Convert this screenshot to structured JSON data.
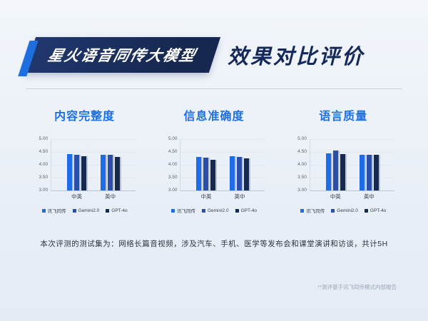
{
  "header": {
    "banner_label": "星火语音同传大模型",
    "title": "效果对比评价"
  },
  "chart_data": [
    {
      "type": "bar",
      "title": "内容完整度",
      "categories": [
        "中英",
        "英中"
      ],
      "series": [
        {
          "name": "讯飞同传",
          "color": "#1f6ce8",
          "values": [
            4.42,
            4.38
          ]
        },
        {
          "name": "Gemini2.0",
          "color": "#2b4fa8",
          "values": [
            4.38,
            4.38
          ]
        },
        {
          "name": "GPT-4o",
          "color": "#16294f",
          "values": [
            4.32,
            4.3
          ]
        }
      ],
      "ylim": [
        3,
        5
      ],
      "yticks": [
        "5.00",
        "4.50",
        "4.00",
        "3.50",
        "3.00"
      ],
      "legend_position": "bottom",
      "grid": true
    },
    {
      "type": "bar",
      "title": "信息准确度",
      "categories": [
        "中英",
        "英中"
      ],
      "series": [
        {
          "name": "讯飞同传",
          "color": "#1f6ce8",
          "values": [
            4.3,
            4.32
          ]
        },
        {
          "name": "Gemini2.0",
          "color": "#2b4fa8",
          "values": [
            4.28,
            4.3
          ]
        },
        {
          "name": "GPT-4o",
          "color": "#16294f",
          "values": [
            4.2,
            4.25
          ]
        }
      ],
      "ylim": [
        3,
        5
      ],
      "yticks": [
        "5.00",
        "4.50",
        "4.00",
        "3.50",
        "3.00"
      ],
      "legend_position": "bottom",
      "grid": true
    },
    {
      "type": "bar",
      "title": "语言质量",
      "categories": [
        "中英",
        "英中"
      ],
      "series": [
        {
          "name": "讯飞同传",
          "color": "#1f6ce8",
          "values": [
            4.45,
            4.38
          ]
        },
        {
          "name": "Gemini2.0",
          "color": "#2b4fa8",
          "values": [
            4.55,
            4.38
          ]
        },
        {
          "name": "GPT-4o",
          "color": "#16294f",
          "values": [
            4.42,
            4.38
          ]
        }
      ],
      "ylim": [
        3,
        5
      ],
      "yticks": [
        "5.00",
        "4.50",
        "4.00",
        "3.50",
        "3.00"
      ],
      "legend_position": "bottom",
      "grid": true
    }
  ],
  "footer": {
    "note": "本次评测的测试集为：网络长篇音视频，涉及汽车、手机、医学等发布会和课堂演讲和访谈，共计5H",
    "source_note": "**测评基于讯飞同传模式内部报告"
  }
}
